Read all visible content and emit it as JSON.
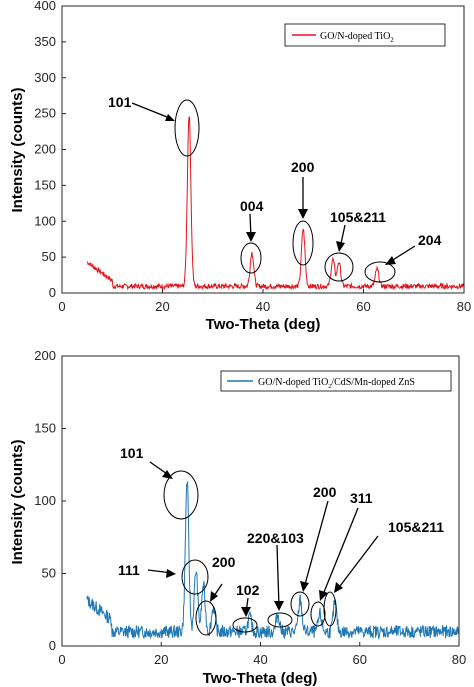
{
  "chart_data": [
    {
      "type": "line",
      "xlabel": "Two-Theta (deg)",
      "ylabel": "Intensity (counts)",
      "xlim": [
        0,
        80
      ],
      "ylim": [
        0,
        400
      ],
      "xticks": [
        "0",
        "20",
        "40",
        "60",
        "80"
      ],
      "yticks": [
        "0",
        "50",
        "100",
        "150",
        "200",
        "250",
        "300",
        "350",
        "400"
      ],
      "grid": false,
      "legend_position": "top-right",
      "series": [
        {
          "name": "GO/N-doped TiO",
          "name_subscript": "2",
          "color": "#e0141c",
          "baseline": {
            "x_range": [
              5,
              80
            ],
            "level_start": 42,
            "level_after_10": 8
          },
          "peaks": [
            {
              "x": 25.3,
              "y": 248
            },
            {
              "x": 37.8,
              "y": 55
            },
            {
              "x": 48.0,
              "y": 88
            },
            {
              "x": 53.9,
              "y": 45
            },
            {
              "x": 55.1,
              "y": 42
            },
            {
              "x": 62.7,
              "y": 32
            }
          ]
        }
      ],
      "annotations": [
        {
          "label": "101",
          "x": 25.3,
          "y": 248
        },
        {
          "label": "004",
          "x": 37.8,
          "y": 55
        },
        {
          "label": "200",
          "x": 48.0,
          "y": 88
        },
        {
          "label": "105&211",
          "x": 54.5,
          "y": 45
        },
        {
          "label": "204",
          "x": 62.7,
          "y": 32
        }
      ]
    },
    {
      "type": "line",
      "xlabel": "Two-Theta (deg)",
      "ylabel": "Intensity (counts)",
      "xlim": [
        0,
        80
      ],
      "ylim": [
        0,
        200
      ],
      "xticks": [
        "0",
        "20",
        "40",
        "60",
        "80"
      ],
      "yticks": [
        "0",
        "50",
        "100",
        "150",
        "200"
      ],
      "grid": false,
      "legend_position": "top-right",
      "series": [
        {
          "name": "GO/N-doped TiO",
          "name_subscript": "2",
          "name_suffix": "/CdS/Mn-doped ZnS",
          "color": "#1f77b4",
          "baseline": {
            "x_range": [
              5,
              80
            ],
            "level_start": 30,
            "level_after_10": 8
          },
          "peaks": [
            {
              "x": 25.2,
              "y": 112
            },
            {
              "x": 27.0,
              "y": 50
            },
            {
              "x": 28.5,
              "y": 40
            },
            {
              "x": 30.5,
              "y": 25
            },
            {
              "x": 37.8,
              "y": 18
            },
            {
              "x": 43.5,
              "y": 20
            },
            {
              "x": 48.0,
              "y": 30
            },
            {
              "x": 52.0,
              "y": 20
            },
            {
              "x": 55.0,
              "y": 28
            }
          ]
        }
      ],
      "annotations": [
        {
          "label": "101",
          "x": 25.2,
          "y": 112
        },
        {
          "label": "111",
          "x": 27.0,
          "y": 50
        },
        {
          "label": "200",
          "x": 30.5,
          "y": 25
        },
        {
          "label": "102",
          "x": 37.8,
          "y": 18
        },
        {
          "label": "220&103",
          "x": 43.5,
          "y": 20
        },
        {
          "label": "200",
          "x": 48.0,
          "y": 30
        },
        {
          "label": "311",
          "x": 52.0,
          "y": 20
        },
        {
          "label": "105&211",
          "x": 55.0,
          "y": 28
        }
      ]
    }
  ]
}
